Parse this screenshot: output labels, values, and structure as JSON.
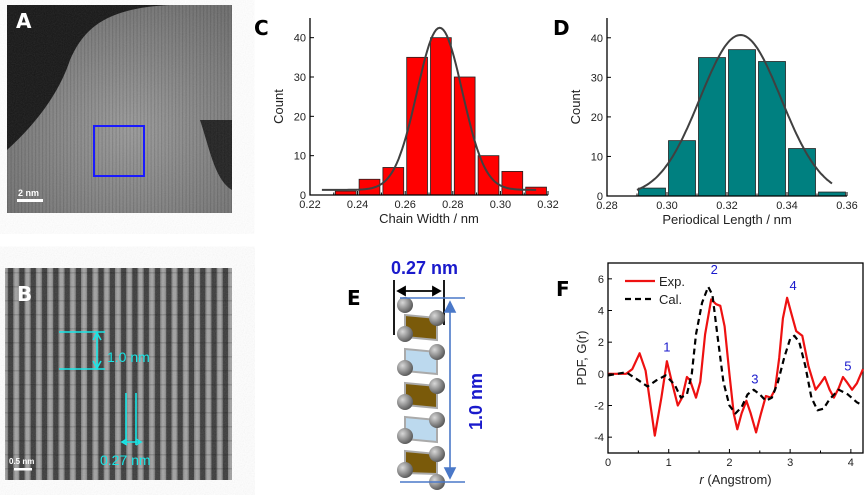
{
  "panels": {
    "A": {
      "label": "A",
      "scale_bar": "2 nm",
      "roi_box_color": "#1a1aff"
    },
    "B": {
      "label": "B",
      "scale_bar": "0.5 nm",
      "annotation_period": "1.0 nm",
      "annotation_width": "0.27 nm",
      "annotation_color": "#19e6e6"
    },
    "E": {
      "label": "E",
      "width_label": "0.27 nm",
      "height_label": "1.0 nm",
      "label_color": "#1a1acc",
      "atom_color": "#808080",
      "face_colors": [
        "#7a5a0a",
        "#bcd9ee"
      ]
    }
  },
  "chart_data": [
    {
      "panel": "C",
      "type": "bar",
      "xlabel": "Chain Width / nm",
      "ylabel": "Count",
      "xlim": [
        0.22,
        0.32
      ],
      "ylim": [
        0,
        45
      ],
      "xticks": [
        "0.22",
        "0.24",
        "0.26",
        "0.28",
        "0.30",
        "0.32"
      ],
      "yticks": [
        "0",
        "10",
        "20",
        "30",
        "40"
      ],
      "bin_width": 0.01,
      "bin_centers": [
        0.235,
        0.245,
        0.255,
        0.265,
        0.275,
        0.285,
        0.295,
        0.305,
        0.315
      ],
      "values": [
        1,
        4,
        7,
        35,
        40,
        30,
        10,
        6,
        2
      ],
      "bar_color": "#ff0000",
      "fit": {
        "type": "gaussian",
        "center": 0.2745,
        "amplitude": 41.2,
        "sigma": 0.0095,
        "baseline": 1.3,
        "range": [
          0.225,
          0.315
        ],
        "color": "#404040"
      },
      "grid": false
    },
    {
      "panel": "D",
      "type": "bar",
      "xlabel": "Periodical Length / nm",
      "ylabel": "Count",
      "xlim": [
        0.28,
        0.36
      ],
      "ylim": [
        0,
        45
      ],
      "xticks": [
        "0.28",
        "0.30",
        "0.32",
        "0.34",
        "0.36"
      ],
      "yticks": [
        "0",
        "10",
        "20",
        "30",
        "40"
      ],
      "bin_width": 0.01,
      "bin_centers": [
        0.295,
        0.305,
        0.315,
        0.325,
        0.335,
        0.345,
        0.355
      ],
      "values": [
        2,
        14,
        35,
        37,
        34,
        12,
        1
      ],
      "bar_color": "#008080",
      "fit": {
        "type": "gaussian",
        "center": 0.3245,
        "amplitude": 40.7,
        "sigma": 0.0135,
        "baseline": 0,
        "range": [
          0.29,
          0.355
        ],
        "color": "#404040"
      },
      "grid": false
    },
    {
      "panel": "F",
      "type": "line",
      "xlabel_italic": "r",
      "xlabel": " (Angstrom)",
      "ylabel": "PDF, G(r)",
      "xlim": [
        0,
        4.2
      ],
      "ylim": [
        -5,
        7
      ],
      "xticks": [
        "0",
        "1",
        "2",
        "3",
        "4"
      ],
      "yticks": [
        "-4",
        "-2",
        "0",
        "2",
        "4",
        "6"
      ],
      "legend_position": "top-left",
      "series": [
        {
          "name": "Exp.",
          "color": "#ee1111",
          "dash": "solid",
          "x": [
            0,
            0.3,
            0.4,
            0.52,
            0.62,
            0.77,
            0.88,
            0.97,
            1.05,
            1.15,
            1.22,
            1.3,
            1.35,
            1.45,
            1.52,
            1.6,
            1.7,
            1.78,
            1.85,
            1.92,
            2.0,
            2.07,
            2.13,
            2.2,
            2.28,
            2.35,
            2.44,
            2.52,
            2.6,
            2.68,
            2.75,
            2.82,
            2.88,
            2.95,
            3.02,
            3.1,
            3.2,
            3.3,
            3.42,
            3.5,
            3.57,
            3.65,
            3.72,
            3.8,
            3.87,
            3.93,
            4.02,
            4.1,
            4.2
          ],
          "y": [
            0,
            0,
            0.3,
            1.3,
            0.2,
            -3.9,
            -1.5,
            0.8,
            -0.5,
            -2.0,
            -1.5,
            -0.2,
            -0.4,
            -1.5,
            -0.5,
            2.5,
            4.7,
            4.4,
            4.3,
            3.0,
            0,
            -2.5,
            -3.5,
            -2.5,
            -1.7,
            -2.5,
            -3.7,
            -2.5,
            -1.4,
            -1.5,
            -1.0,
            1.0,
            3.5,
            4.8,
            3.8,
            2.7,
            2.4,
            0.5,
            -1.0,
            -0.6,
            -0.2,
            -1.0,
            -1.5,
            -0.9,
            -0.2,
            -0.5,
            -1.0,
            -0.6,
            0.3
          ]
        },
        {
          "name": "Cal.",
          "color": "#000000",
          "dash": "dashed",
          "x": [
            0,
            0.3,
            0.5,
            0.65,
            0.8,
            0.95,
            1.1,
            1.2,
            1.3,
            1.38,
            1.45,
            1.55,
            1.65,
            1.72,
            1.8,
            1.9,
            2.0,
            2.1,
            2.2,
            2.3,
            2.4,
            2.5,
            2.6,
            2.7,
            2.8,
            2.9,
            3.0,
            3.07,
            3.15,
            3.25,
            3.35,
            3.45,
            3.55,
            3.65,
            3.8,
            3.95,
            4.1,
            4.2
          ],
          "y": [
            -0.1,
            0.1,
            -0.4,
            -0.8,
            -0.4,
            -0.1,
            -0.7,
            -1.5,
            -1.3,
            0,
            2.5,
            4.5,
            5.5,
            5.0,
            2.5,
            -0.5,
            -2.0,
            -2.5,
            -2.1,
            -1.3,
            -1.0,
            -1.3,
            -1.7,
            -1.5,
            -0.5,
            1.0,
            2.2,
            2.4,
            2.0,
            0.5,
            -1.5,
            -2.3,
            -2.2,
            -1.6,
            -1.0,
            -1.3,
            -1.8,
            -2.0
          ]
        }
      ],
      "annotations": [
        {
          "text": "1",
          "x": 0.97,
          "y": 1.4
        },
        {
          "text": "2",
          "x": 1.75,
          "y": 6.3
        },
        {
          "text": "3",
          "x": 2.42,
          "y": -0.6
        },
        {
          "text": "4",
          "x": 3.05,
          "y": 5.3
        },
        {
          "text": "5",
          "x": 3.95,
          "y": 0.2
        }
      ],
      "annotation_color": "#1a1acc",
      "grid": false
    }
  ],
  "panel_labels": {
    "C": "C",
    "D": "D",
    "F": "F"
  }
}
